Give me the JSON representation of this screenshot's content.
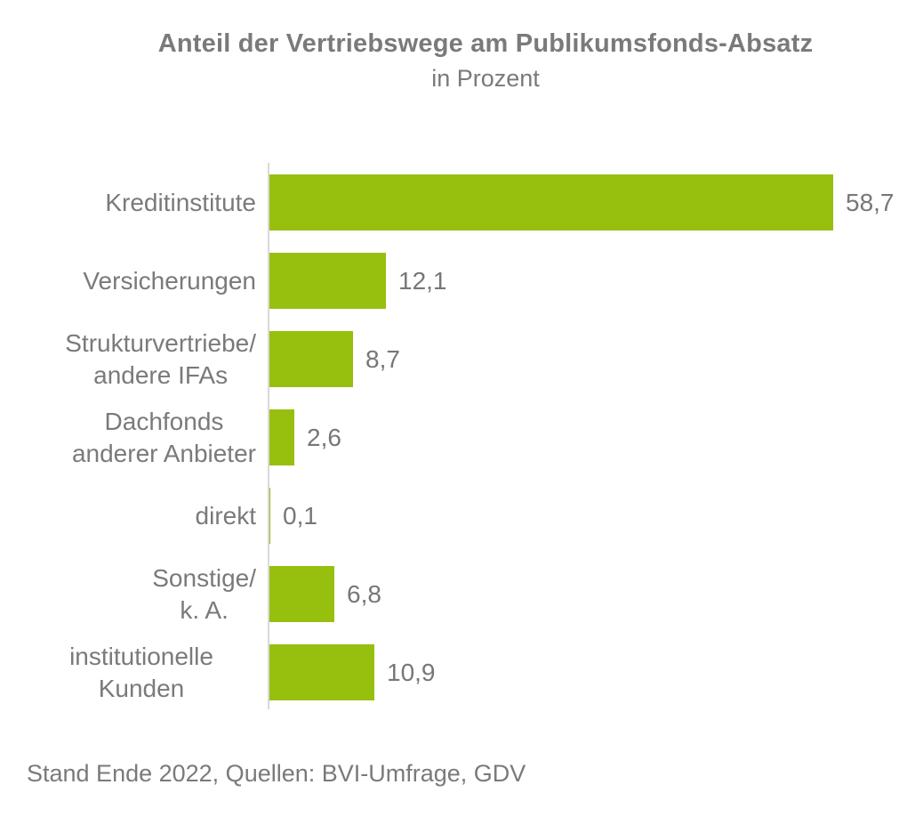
{
  "header": {
    "title": "Anteil der Vertriebswege am Publikumsfonds-Absatz",
    "subtitle": "in Prozent"
  },
  "footer": {
    "text": "Stand Ende 2022, Quellen: BVI-Umfrage, GDV"
  },
  "colors": {
    "bar": "#97bf0e",
    "text": "#7a7a7a",
    "value_text": "#777777",
    "axis": "#d9d9d9",
    "background": "#ffffff"
  },
  "chart_data": {
    "type": "bar",
    "orientation": "horizontal",
    "title": "Anteil der Vertriebswege am Publikumsfonds-Absatz",
    "subtitle": "in Prozent",
    "unit": "percent",
    "xlim": [
      0,
      60
    ],
    "grid": false,
    "legend": false,
    "decimal_separator": ",",
    "categories": [
      "Kreditinstitute",
      "Versicherungen",
      "Strukturvertriebe/ andere IFAs",
      "Dachfonds anderer Anbieter",
      "direkt",
      "Sonstige/ k. A.",
      "institutionelle Kunden"
    ],
    "values": [
      58.7,
      12.1,
      8.7,
      2.6,
      0.1,
      6.8,
      10.9
    ],
    "rows": [
      {
        "label": "Kreditinstitute",
        "value": 58.7,
        "value_label": "58,7"
      },
      {
        "label": "Versicherungen",
        "value": 12.1,
        "value_label": "12,1"
      },
      {
        "label": "Strukturvertriebe/\nandere IFAs",
        "value": 8.7,
        "value_label": "8,7"
      },
      {
        "label": "Dachfonds\nanderer Anbieter",
        "value": 2.6,
        "value_label": "2,6"
      },
      {
        "label": "direkt",
        "value": 0.1,
        "value_label": "0,1"
      },
      {
        "label": "Sonstige/\nk. A.",
        "value": 6.8,
        "value_label": "6,8"
      },
      {
        "label": "institutionelle Kunden",
        "value": 10.9,
        "value_label": "10,9"
      }
    ]
  }
}
